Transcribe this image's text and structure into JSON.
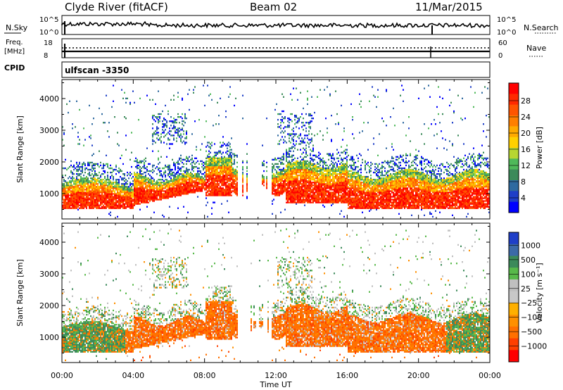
{
  "header": {
    "station": "Clyde River (fitACF)",
    "beam": "Beam 02",
    "date": "11/Mar/2015"
  },
  "top_panels": {
    "nsky_label": "N.Sky",
    "nsky_ticks": [
      "10^5",
      "10^0"
    ],
    "nsearch_label": "N.Search",
    "nsearch_ticks": [
      "10^5",
      "10^0"
    ],
    "freq_label_line1": "Freq.",
    "freq_label_line2": "[MHz]",
    "freq_ticks": [
      "18",
      "8"
    ],
    "nave_label": "Nave",
    "nave_ticks": [
      "60",
      "0"
    ],
    "cpid_label": "CPID",
    "cpid_value": "ulfscan -3350"
  },
  "chart_data": [
    {
      "type": "heatmap",
      "name": "power",
      "ylabel": "Slant Range [km]",
      "y_ticks": [
        "1000",
        "2000",
        "3000",
        "4000"
      ],
      "ylim": [
        200,
        4600
      ],
      "x_ticks": [
        "00:00",
        "04:00",
        "08:00",
        "12:00",
        "16:00",
        "20:00",
        "00:00"
      ],
      "colorbar": {
        "label": "Power [dB]",
        "ticks": [
          "28",
          "24",
          "20",
          "16",
          "12",
          "8",
          "4"
        ],
        "colors": [
          "#ff0000",
          "#ff2a00",
          "#ff5500",
          "#ff7f00",
          "#ffaa00",
          "#ffd000",
          "#b7d632",
          "#4fb95a",
          "#3c8a5a",
          "#2f6aa0",
          "#1f3fc8",
          "#0000ff"
        ]
      }
    },
    {
      "type": "heatmap",
      "name": "velocity",
      "ylabel": "Slant Range [km]",
      "y_ticks": [
        "1000",
        "2000",
        "3000",
        "4000"
      ],
      "ylim": [
        200,
        4600
      ],
      "xlabel": "Time UT",
      "x_ticks": [
        "00:00",
        "04:00",
        "08:00",
        "12:00",
        "16:00",
        "20:00",
        "00:00"
      ],
      "colorbar": {
        "label": "Velocity [m s⁻¹]",
        "ticks": [
          "1000",
          "500",
          "100",
          "25",
          "−25",
          "−100",
          "−500",
          "−1000"
        ],
        "colors": [
          "#1f3fc8",
          "#3c6aa8",
          "#3c8a5a",
          "#58b94a",
          "#bfbfbf",
          "#c8c8c8",
          "#ffb000",
          "#ff9000",
          "#ff7000",
          "#ff4000",
          "#ff0000"
        ]
      }
    }
  ]
}
